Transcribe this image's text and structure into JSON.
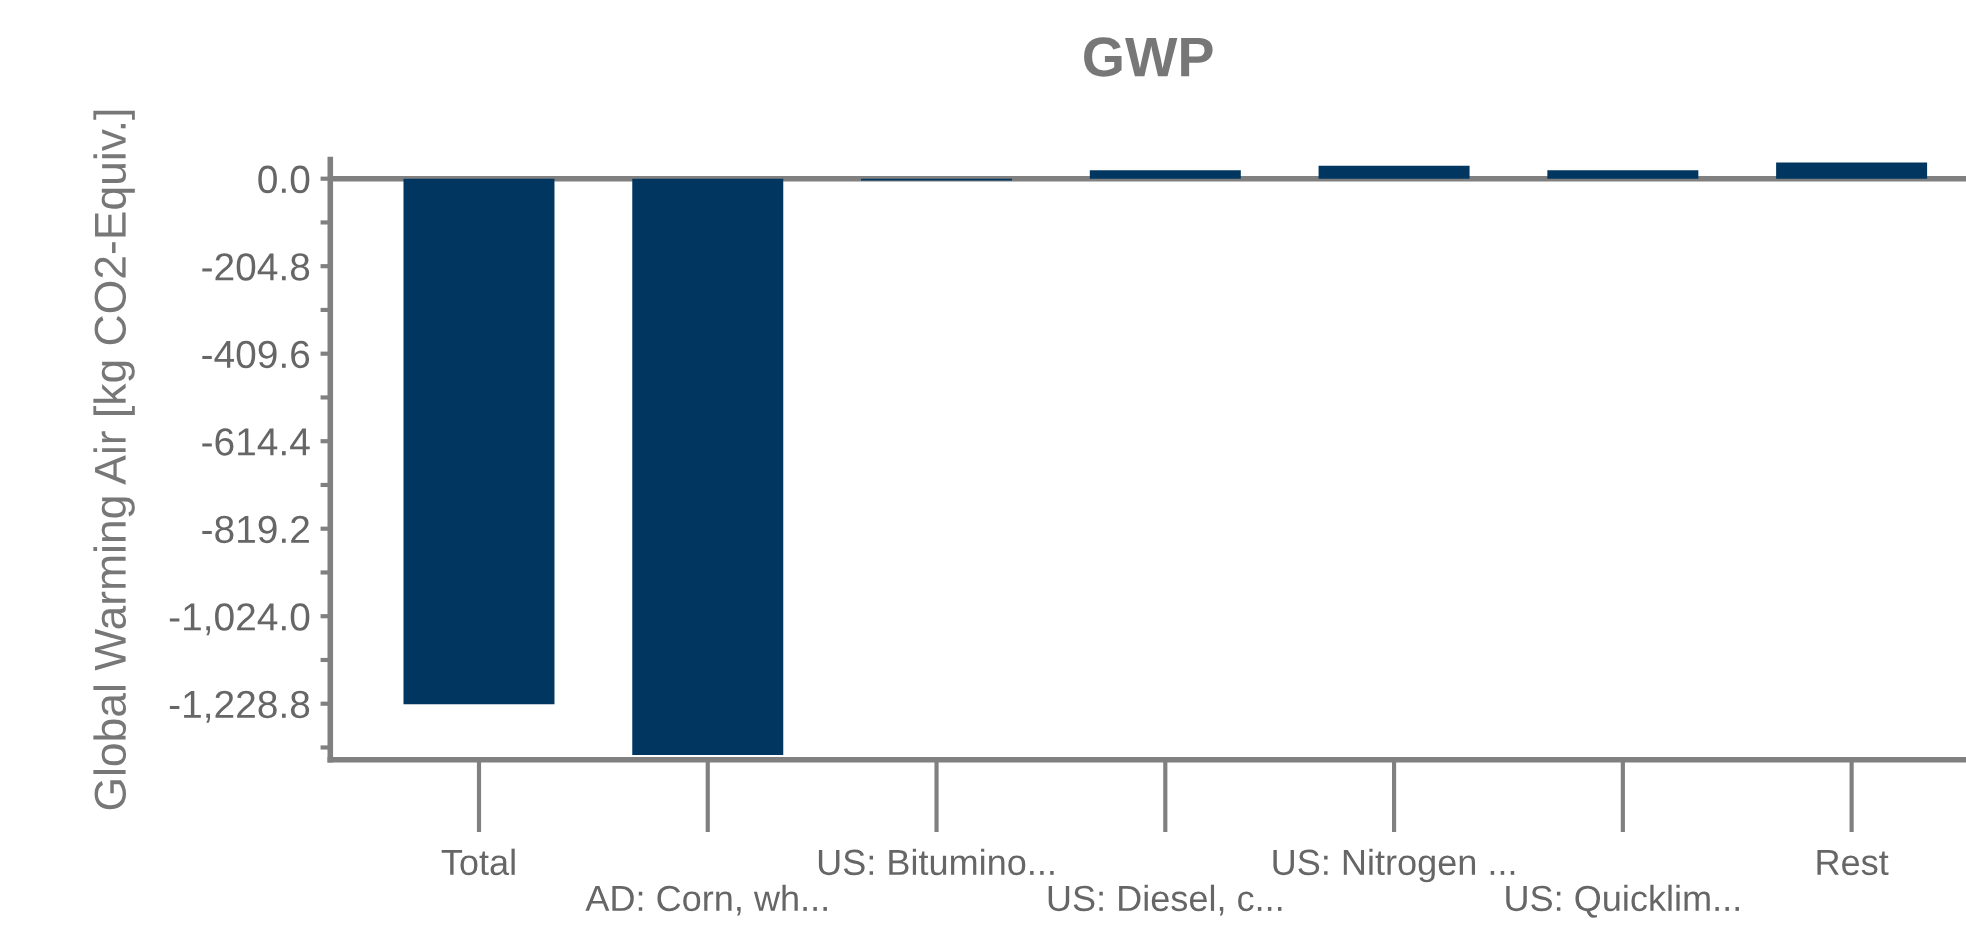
{
  "chart_data": {
    "type": "bar",
    "title": "GWP",
    "ylabel": "Global Warming Air [kg CO2-Equiv.]",
    "categories": [
      "Total",
      "AD: Corn, wh...",
      "US: Bitumino...",
      "US: Diesel, c...",
      "US: Nitrogen ...",
      "US: Quicklim...",
      "Rest"
    ],
    "values": [
      -1230,
      -1349,
      -4,
      20,
      30,
      20,
      38
    ],
    "color": "#00365f",
    "ylim": [
      -1360,
      45
    ],
    "yticks": [
      {
        "value": 0,
        "label": "0.0"
      },
      {
        "value": -102.4,
        "label": null
      },
      {
        "value": -204.8,
        "label": "-204.8"
      },
      {
        "value": -307.2,
        "label": null
      },
      {
        "value": -409.6,
        "label": "-409.6"
      },
      {
        "value": -512,
        "label": null
      },
      {
        "value": -614.4,
        "label": "-614.4"
      },
      {
        "value": -716.8,
        "label": null
      },
      {
        "value": -819.2,
        "label": "-819.2"
      },
      {
        "value": -921.6,
        "label": null
      },
      {
        "value": -1024,
        "label": "-1,024.0"
      },
      {
        "value": -1126.4,
        "label": null
      },
      {
        "value": -1228.8,
        "label": "-1,228.8"
      },
      {
        "value": -1331.2,
        "label": null
      }
    ],
    "ref_lines": [
      {
        "axis": "y",
        "value": 0,
        "color": "#808080"
      }
    ],
    "grid": false,
    "legend": false
  }
}
